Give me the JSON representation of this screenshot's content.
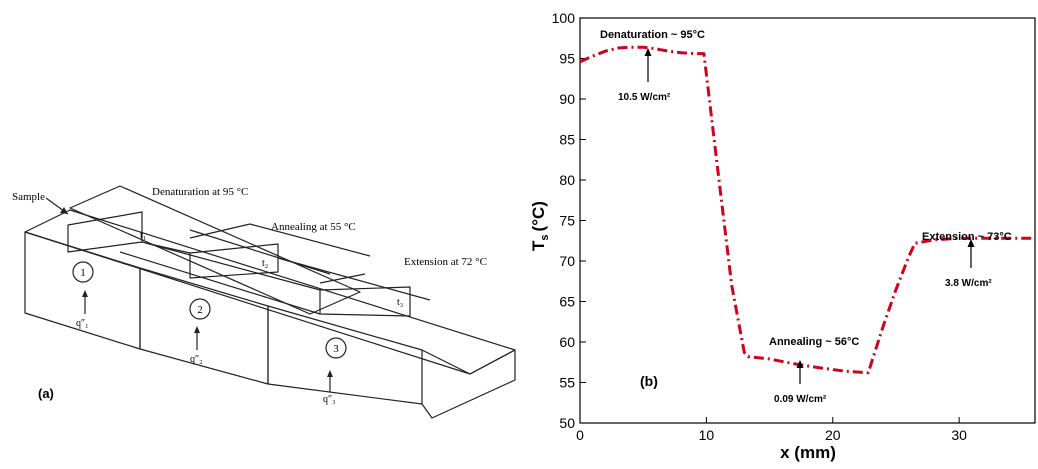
{
  "panel_a": {
    "label": "(a)",
    "sample_label": "Sample",
    "zone_labels": [
      {
        "text": "Denaturation at 95 °C"
      },
      {
        "text": "Annealing at 55 °C"
      },
      {
        "text": "Extension at 72 °C"
      }
    ],
    "zone_numbers": [
      "1",
      "2",
      "3"
    ],
    "channel_labels": [
      "t₁",
      "t₂",
      "t₃"
    ],
    "heat_flux_labels": [
      "q″₁",
      "q″₂",
      "q″₃"
    ]
  },
  "panel_b": {
    "label": "(b)",
    "annotations": {
      "denaturation": "Denaturation ~ 95°C",
      "annealing": "Annealing ~ 56°C",
      "extension": "Extension ~ 73°C",
      "flux1": "10.5 W/cm²",
      "flux2": "0.09 W/cm²",
      "flux3": "3.8 W/cm²"
    },
    "chart_data": {
      "type": "line",
      "xlabel": "x (mm)",
      "ylabel_main": "T",
      "ylabel_sub": "s",
      "ylabel_unit": "(°C)",
      "xlim": [
        0,
        36
      ],
      "ylim": [
        50,
        100
      ],
      "xticks": [
        0,
        10,
        20,
        30
      ],
      "yticks": [
        50,
        55,
        60,
        65,
        70,
        75,
        80,
        85,
        90,
        95,
        100
      ],
      "line_color": "#d0021b",
      "series": [
        {
          "x": [
            0,
            1,
            2,
            3,
            4,
            5,
            6,
            7,
            8,
            9,
            9.8,
            11,
            12,
            13,
            13.3,
            15,
            17,
            19,
            21,
            22.8,
            24,
            25,
            26,
            26.5,
            28,
            30,
            32,
            34,
            36
          ],
          "y": [
            94.6,
            95.3,
            95.9,
            96.3,
            96.4,
            96.4,
            96.2,
            95.9,
            95.7,
            95.6,
            95.6,
            80,
            67,
            58.7,
            58.2,
            57.9,
            57.3,
            56.8,
            56.4,
            56.2,
            62,
            66.5,
            70.5,
            72.2,
            72.6,
            72.8,
            72.8,
            72.8,
            72.8
          ]
        }
      ]
    }
  }
}
